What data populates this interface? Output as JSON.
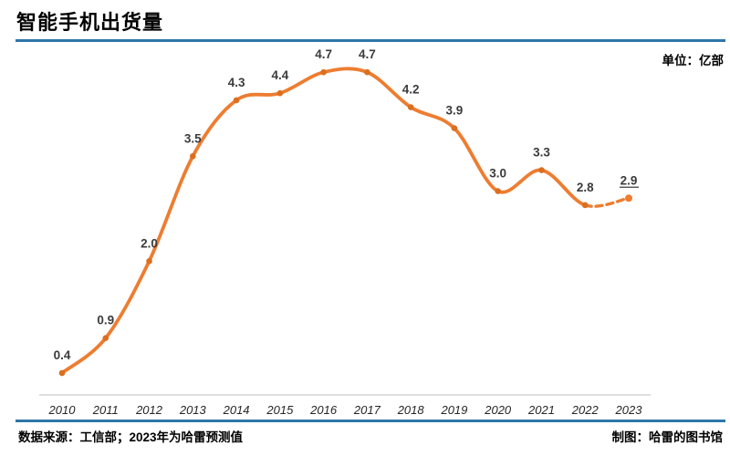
{
  "page": {
    "title": "智能手机出货量",
    "unit_label": "单位：亿部",
    "source_note": "数据来源：工信部；2023年为哈雷预测值",
    "credit": "制图：哈雷的图书馆"
  },
  "colors": {
    "line": "#ED7D31",
    "marker": "#DB6F20",
    "rule_blue": "#2E76A8",
    "axis_line": "#C9C9C9",
    "value_label": "#3B3B3B",
    "year_label": "#262626"
  },
  "chart_data": {
    "type": "line",
    "title": "智能手机出货量",
    "ylabel": "出货量（亿部）",
    "unit": "亿部",
    "categories": [
      "2010",
      "2011",
      "2012",
      "2013",
      "2014",
      "2015",
      "2016",
      "2017",
      "2018",
      "2019",
      "2020",
      "2021",
      "2022",
      "2023"
    ],
    "values": [
      0.4,
      0.9,
      2.0,
      3.5,
      4.3,
      4.4,
      4.7,
      4.7,
      4.2,
      3.9,
      3.0,
      3.3,
      2.8,
      2.9
    ],
    "value_labels": [
      "0.4",
      "0.9",
      "2.0",
      "3.5",
      "4.3",
      "4.4",
      "4.7",
      "4.7",
      "4.2",
      "3.9",
      "3.0",
      "3.3",
      "2.8",
      "2.9"
    ],
    "ylim": [
      0,
      5
    ],
    "grid": false,
    "smoothed": true,
    "legend": "none",
    "data_labels": "above",
    "forecast_note": "2023年为预测值（虚线段，数值带下划线）",
    "dashed_segment_from": "2022",
    "dashed_segment_to": "2023",
    "underlined_label": "2023"
  }
}
